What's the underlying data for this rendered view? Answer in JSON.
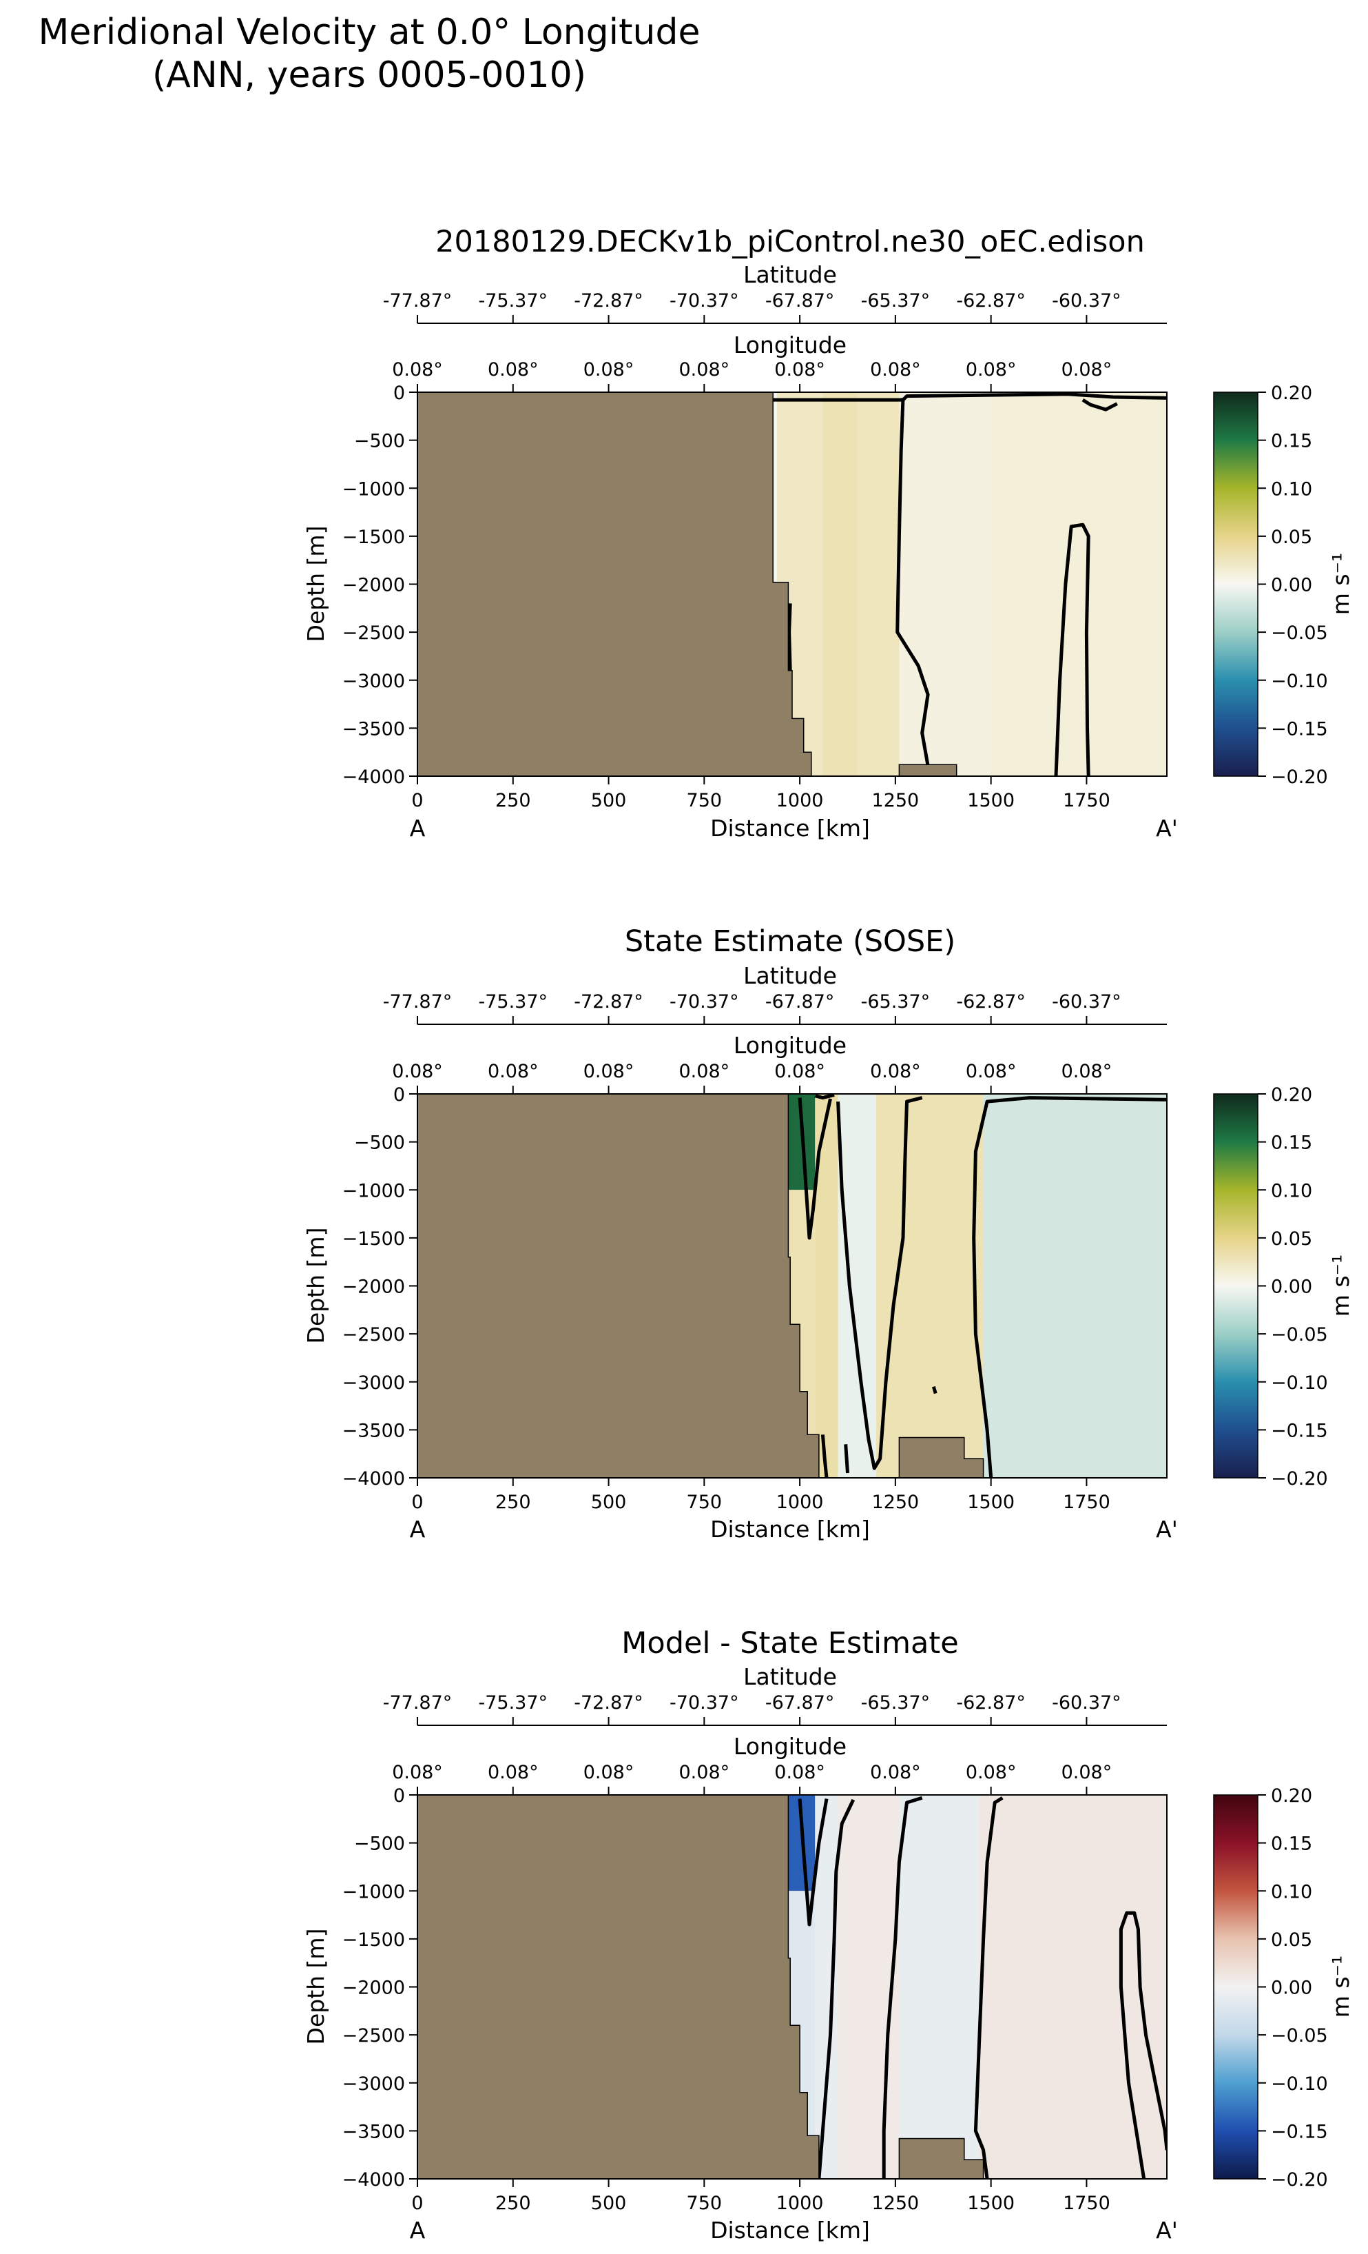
{
  "figure": {
    "title_line1": "Meridional Velocity at 0.0° Longitude",
    "title_line2": "(ANN, years 0005-0010)"
  },
  "axes_text": {
    "x_label": "Distance [km]",
    "y_label": "Depth [m]",
    "lat_label": "Latitude",
    "lon_label": "Longitude",
    "start_label": "A",
    "end_label": "A'",
    "colorbar_unit": "m s⁻¹"
  },
  "chart_data": [
    {
      "type": "heatmap",
      "title": "20180129.DECKv1b_piControl.ne30_oEC.edison",
      "xlabel": "Distance [km]",
      "ylabel": "Depth [m]",
      "xlim": [
        0,
        1960
      ],
      "ylim": [
        -4000,
        0
      ],
      "x_ticks": [
        0,
        250,
        500,
        750,
        1000,
        1250,
        1500,
        1750
      ],
      "y_ticks": [
        0,
        -500,
        -1000,
        -1500,
        -2000,
        -2500,
        -3000,
        -3500,
        -4000
      ],
      "latitude_ticks": [
        "-77.87°",
        "-75.37°",
        "-72.87°",
        "-70.37°",
        "-67.87°",
        "-65.37°",
        "-62.87°",
        "-60.37°"
      ],
      "longitude_ticks": [
        "0.08°",
        "0.08°",
        "0.08°",
        "0.08°",
        "0.08°",
        "0.08°",
        "0.08°",
        "0.08°"
      ],
      "colorbar": {
        "label": "m s⁻¹",
        "range": [
          -0.2,
          0.2
        ],
        "ticks": [
          "0.20",
          "0.15",
          "0.10",
          "0.05",
          "0.00",
          "−0.05",
          "−0.10",
          "−0.15",
          "−0.20"
        ],
        "colormap": "diverging-teal-yellow"
      },
      "colormap_stops": [
        "#1a1f4d",
        "#1f4f8f",
        "#2a8fae",
        "#9ccfc6",
        "#f7f7f2",
        "#e6d48a",
        "#a6b52a",
        "#1f7a45",
        "#0f2a1c"
      ],
      "land": [
        [
          0,
          0
        ],
        [
          930,
          0
        ],
        [
          930,
          -1980
        ],
        [
          970,
          -1980
        ],
        [
          970,
          -2900
        ],
        [
          980,
          -2900
        ],
        [
          980,
          -3400
        ],
        [
          1010,
          -3400
        ],
        [
          1010,
          -3750
        ],
        [
          1030,
          -3750
        ],
        [
          1030,
          -4000
        ],
        [
          0,
          -4000
        ]
      ],
      "seamounts": [
        [
          [
            1260,
            -4000
          ],
          [
            1260,
            -3880
          ],
          [
            1410,
            -3880
          ],
          [
            1410,
            -4000
          ]
        ]
      ],
      "field": [
        {
          "x": [
            940,
            1060
          ],
          "y": [
            0,
            -4000
          ],
          "v": 0.022
        },
        {
          "x": [
            1060,
            1150
          ],
          "y": [
            0,
            -4000
          ],
          "v": 0.03
        },
        {
          "x": [
            1150,
            1260
          ],
          "y": [
            0,
            -4000
          ],
          "v": 0.025
        },
        {
          "x": [
            1260,
            1500
          ],
          "y": [
            0,
            -4000
          ],
          "v": 0.008
        },
        {
          "x": [
            1500,
            1960
          ],
          "y": [
            0,
            -4000
          ],
          "v": 0.012
        }
      ],
      "contours": [
        [
          [
            930,
            -80
          ],
          [
            1270,
            -80
          ],
          [
            1280,
            -40
          ],
          [
            1700,
            -20
          ],
          [
            1820,
            -50
          ],
          [
            1960,
            -60
          ]
        ],
        [
          [
            1270,
            -60
          ],
          [
            1265,
            -600
          ],
          [
            1260,
            -1500
          ],
          [
            1255,
            -2500
          ],
          [
            1310,
            -2850
          ],
          [
            1335,
            -3150
          ],
          [
            1320,
            -3550
          ],
          [
            1340,
            -4000
          ]
        ],
        [
          [
            1670,
            -4000
          ],
          [
            1680,
            -3000
          ],
          [
            1695,
            -2000
          ],
          [
            1710,
            -1400
          ],
          [
            1740,
            -1380
          ],
          [
            1755,
            -1500
          ],
          [
            1750,
            -2500
          ],
          [
            1752,
            -3500
          ],
          [
            1755,
            -4000
          ]
        ],
        [
          [
            1740,
            -80
          ],
          [
            1760,
            -130
          ],
          [
            1800,
            -180
          ],
          [
            1830,
            -120
          ]
        ],
        [
          [
            975,
            -2200
          ],
          [
            972,
            -2500
          ],
          [
            975,
            -2900
          ]
        ]
      ]
    },
    {
      "type": "heatmap",
      "title": "State Estimate (SOSE)",
      "xlabel": "Distance [km]",
      "ylabel": "Depth [m]",
      "xlim": [
        0,
        1960
      ],
      "ylim": [
        -4000,
        0
      ],
      "x_ticks": [
        0,
        250,
        500,
        750,
        1000,
        1250,
        1500,
        1750
      ],
      "y_ticks": [
        0,
        -500,
        -1000,
        -1500,
        -2000,
        -2500,
        -3000,
        -3500,
        -4000
      ],
      "latitude_ticks": [
        "-77.87°",
        "-75.37°",
        "-72.87°",
        "-70.37°",
        "-67.87°",
        "-65.37°",
        "-62.87°",
        "-60.37°"
      ],
      "longitude_ticks": [
        "0.08°",
        "0.08°",
        "0.08°",
        "0.08°",
        "0.08°",
        "0.08°",
        "0.08°",
        "0.08°"
      ],
      "colorbar": {
        "label": "m s⁻¹",
        "range": [
          -0.2,
          0.2
        ],
        "ticks": [
          "0.20",
          "0.15",
          "0.10",
          "0.05",
          "0.00",
          "−0.05",
          "−0.10",
          "−0.15",
          "−0.20"
        ],
        "colormap": "diverging-teal-yellow"
      },
      "colormap_stops": [
        "#1a1f4d",
        "#1f4f8f",
        "#2a8fae",
        "#9ccfc6",
        "#f7f7f2",
        "#e6d48a",
        "#a6b52a",
        "#1f7a45",
        "#0f2a1c"
      ],
      "land": [
        [
          0,
          0
        ],
        [
          970,
          0
        ],
        [
          970,
          -1700
        ],
        [
          975,
          -1700
        ],
        [
          975,
          -2400
        ],
        [
          1000,
          -2400
        ],
        [
          1000,
          -3100
        ],
        [
          1020,
          -3100
        ],
        [
          1020,
          -3550
        ],
        [
          1050,
          -3550
        ],
        [
          1050,
          -4000
        ],
        [
          0,
          -4000
        ]
      ],
      "seamounts": [
        [
          [
            1260,
            -4000
          ],
          [
            1260,
            -3580
          ],
          [
            1430,
            -3580
          ],
          [
            1430,
            -3800
          ],
          [
            1480,
            -3800
          ],
          [
            1480,
            -4000
          ]
        ]
      ],
      "field": [
        {
          "x": [
            970,
            1040
          ],
          "y": [
            0,
            -1000
          ],
          "v": 0.16
        },
        {
          "x": [
            970,
            1040
          ],
          "y": [
            -1000,
            -4000
          ],
          "v": 0.03
        },
        {
          "x": [
            1040,
            1100
          ],
          "y": [
            0,
            -4000
          ],
          "v": 0.035
        },
        {
          "x": [
            1100,
            1200
          ],
          "y": [
            0,
            -4000
          ],
          "v": -0.008
        },
        {
          "x": [
            1200,
            1480
          ],
          "y": [
            0,
            -4000
          ],
          "v": 0.03
        },
        {
          "x": [
            1480,
            1960
          ],
          "y": [
            0,
            -4000
          ],
          "v": -0.02
        }
      ],
      "contours": [
        [
          [
            1000,
            -40
          ],
          [
            1010,
            -600
          ],
          [
            1020,
            -1200
          ],
          [
            1025,
            -1500
          ],
          [
            1035,
            -1200
          ],
          [
            1050,
            -600
          ],
          [
            1080,
            -50
          ]
        ],
        [
          [
            1040,
            -20
          ],
          [
            1060,
            -40
          ],
          [
            1090,
            -10
          ]
        ],
        [
          [
            1100,
            -80
          ],
          [
            1110,
            -1000
          ],
          [
            1130,
            -2000
          ],
          [
            1160,
            -3000
          ],
          [
            1180,
            -3600
          ],
          [
            1195,
            -3900
          ],
          [
            1210,
            -3800
          ],
          [
            1225,
            -3000
          ],
          [
            1245,
            -2200
          ],
          [
            1270,
            -1500
          ],
          [
            1275,
            -700
          ],
          [
            1280,
            -80
          ],
          [
            1320,
            -40
          ]
        ],
        [
          [
            1500,
            -4000
          ],
          [
            1490,
            -3500
          ],
          [
            1460,
            -2500
          ],
          [
            1455,
            -1500
          ],
          [
            1460,
            -600
          ],
          [
            1490,
            -80
          ],
          [
            1600,
            -40
          ],
          [
            1960,
            -60
          ]
        ],
        [
          [
            1350,
            -3050
          ],
          [
            1355,
            -3120
          ]
        ],
        [
          [
            1060,
            -3550
          ],
          [
            1065,
            -3800
          ],
          [
            1070,
            -4000
          ]
        ],
        [
          [
            1120,
            -3650
          ],
          [
            1125,
            -3950
          ]
        ]
      ]
    },
    {
      "type": "heatmap",
      "title": "Model - State Estimate",
      "xlabel": "Distance [km]",
      "ylabel": "Depth [m]",
      "xlim": [
        0,
        1960
      ],
      "ylim": [
        -4000,
        0
      ],
      "x_ticks": [
        0,
        250,
        500,
        750,
        1000,
        1250,
        1500,
        1750
      ],
      "y_ticks": [
        0,
        -500,
        -1000,
        -1500,
        -2000,
        -2500,
        -3000,
        -3500,
        -4000
      ],
      "latitude_ticks": [
        "-77.87°",
        "-75.37°",
        "-72.87°",
        "-70.37°",
        "-67.87°",
        "-65.37°",
        "-62.87°",
        "-60.37°"
      ],
      "longitude_ticks": [
        "0.08°",
        "0.08°",
        "0.08°",
        "0.08°",
        "0.08°",
        "0.08°",
        "0.08°",
        "0.08°"
      ],
      "colorbar": {
        "label": "m s⁻¹",
        "range": [
          -0.2,
          0.2
        ],
        "ticks": [
          "0.20",
          "0.15",
          "0.10",
          "0.05",
          "0.00",
          "−0.05",
          "−0.10",
          "−0.15",
          "−0.20"
        ],
        "colormap": "diverging-blue-red"
      },
      "colormap_stops": [
        "#0d1a4a",
        "#1f4fb0",
        "#4f9fd0",
        "#c2d8e8",
        "#f2f2f2",
        "#e8c3b0",
        "#c2553f",
        "#8a1228",
        "#40050f"
      ],
      "land": [
        [
          0,
          0
        ],
        [
          970,
          0
        ],
        [
          970,
          -1700
        ],
        [
          975,
          -1700
        ],
        [
          975,
          -2400
        ],
        [
          1000,
          -2400
        ],
        [
          1000,
          -3100
        ],
        [
          1020,
          -3100
        ],
        [
          1020,
          -3550
        ],
        [
          1050,
          -3550
        ],
        [
          1050,
          -4000
        ],
        [
          0,
          -4000
        ]
      ],
      "seamounts": [
        [
          [
            1260,
            -4000
          ],
          [
            1260,
            -3580
          ],
          [
            1430,
            -3580
          ],
          [
            1430,
            -3800
          ],
          [
            1480,
            -3800
          ],
          [
            1480,
            -4000
          ]
        ]
      ],
      "field": [
        {
          "x": [
            970,
            1040
          ],
          "y": [
            0,
            -1000
          ],
          "v": -0.14
        },
        {
          "x": [
            970,
            1040
          ],
          "y": [
            -1000,
            -4000
          ],
          "v": -0.02
        },
        {
          "x": [
            1040,
            1100
          ],
          "y": [
            0,
            -4000
          ],
          "v": -0.01
        },
        {
          "x": [
            1100,
            1260
          ],
          "y": [
            0,
            -4000
          ],
          "v": 0.01
        },
        {
          "x": [
            1260,
            1470
          ],
          "y": [
            0,
            -4000
          ],
          "v": -0.01
        },
        {
          "x": [
            1470,
            1960
          ],
          "y": [
            0,
            -4000
          ],
          "v": 0.012
        }
      ],
      "contours": [
        [
          [
            1000,
            -40
          ],
          [
            1010,
            -600
          ],
          [
            1020,
            -1100
          ],
          [
            1025,
            -1350
          ],
          [
            1035,
            -1000
          ],
          [
            1050,
            -500
          ],
          [
            1070,
            -40
          ]
        ],
        [
          [
            1050,
            -4000
          ],
          [
            1060,
            -3500
          ],
          [
            1080,
            -2500
          ],
          [
            1090,
            -1500
          ],
          [
            1095,
            -800
          ],
          [
            1110,
            -300
          ],
          [
            1140,
            -50
          ]
        ],
        [
          [
            1220,
            -4000
          ],
          [
            1220,
            -3500
          ],
          [
            1230,
            -2500
          ],
          [
            1250,
            -1500
          ],
          [
            1260,
            -700
          ],
          [
            1280,
            -80
          ],
          [
            1320,
            -30
          ]
        ],
        [
          [
            1490,
            -4000
          ],
          [
            1480,
            -3700
          ],
          [
            1460,
            -3500
          ],
          [
            1470,
            -2500
          ],
          [
            1480,
            -1500
          ],
          [
            1490,
            -700
          ],
          [
            1510,
            -80
          ],
          [
            1530,
            -30
          ]
        ],
        [
          [
            1900,
            -4000
          ],
          [
            1880,
            -3500
          ],
          [
            1860,
            -3000
          ],
          [
            1850,
            -2500
          ],
          [
            1840,
            -2000
          ],
          [
            1840,
            -1400
          ],
          [
            1855,
            -1230
          ],
          [
            1875,
            -1230
          ],
          [
            1885,
            -1400
          ],
          [
            1890,
            -2000
          ],
          [
            1905,
            -2500
          ],
          [
            1930,
            -3000
          ],
          [
            1955,
            -3500
          ],
          [
            1960,
            -3700
          ]
        ]
      ]
    }
  ]
}
